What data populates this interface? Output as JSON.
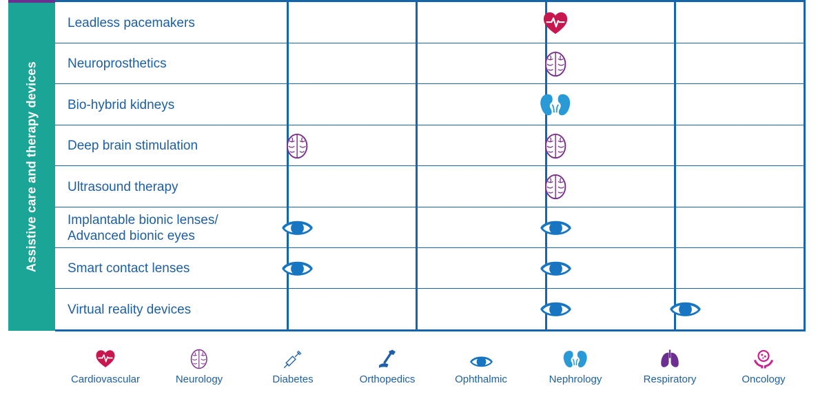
{
  "sidebar": {
    "label": "Assistive care and therapy devices"
  },
  "rows": [
    {
      "label": "Leadless pacemakers",
      "icons": [
        "",
        "",
        "heart-icon",
        ""
      ]
    },
    {
      "label": "Neuroprosthetics",
      "icons": [
        "",
        "",
        "brain-icon",
        ""
      ]
    },
    {
      "label": "Bio-hybrid kidneys",
      "icons": [
        "",
        "",
        "kidney-icon",
        ""
      ]
    },
    {
      "label": "Deep brain stimulation",
      "icons": [
        "brain-icon",
        "",
        "brain-icon",
        ""
      ]
    },
    {
      "label": "Ultrasound therapy",
      "icons": [
        "",
        "",
        "brain-icon",
        ""
      ]
    },
    {
      "label": "Implantable bionic lenses/\nAdvanced bionic eyes",
      "icons": [
        "eye-icon",
        "",
        "eye-icon",
        ""
      ]
    },
    {
      "label": "Smart contact lenses",
      "icons": [
        "eye-icon",
        "",
        "eye-icon",
        ""
      ]
    },
    {
      "label": "Virtual reality devices",
      "icons": [
        "",
        "",
        "eye-icon",
        "eye-icon"
      ]
    }
  ],
  "legend": [
    {
      "label": "Cardiovascular",
      "icon": "heart-icon"
    },
    {
      "label": "Neurology",
      "icon": "brain-icon"
    },
    {
      "label": "Diabetes",
      "icon": "syringe-icon"
    },
    {
      "label": "Orthopedics",
      "icon": "bone-implant-icon"
    },
    {
      "label": "Ophthalmic",
      "icon": "eye-icon"
    },
    {
      "label": "Nephrology",
      "icon": "kidney-icon"
    },
    {
      "label": "Respiratory",
      "icon": "lungs-icon"
    },
    {
      "label": "Oncology",
      "icon": "cell-hands-icon"
    }
  ],
  "colors": {
    "table_line": "#1565ad",
    "sidebar": "#1aa596",
    "text": "#1d5fa4",
    "cardiovascular": "#c8164f",
    "neurology": "#7a2e8e",
    "ophthalmic": "#1775c2",
    "nephrology": "#2a9ad6",
    "respiratory": "#6b2f8f",
    "oncology": "#c8238f"
  }
}
